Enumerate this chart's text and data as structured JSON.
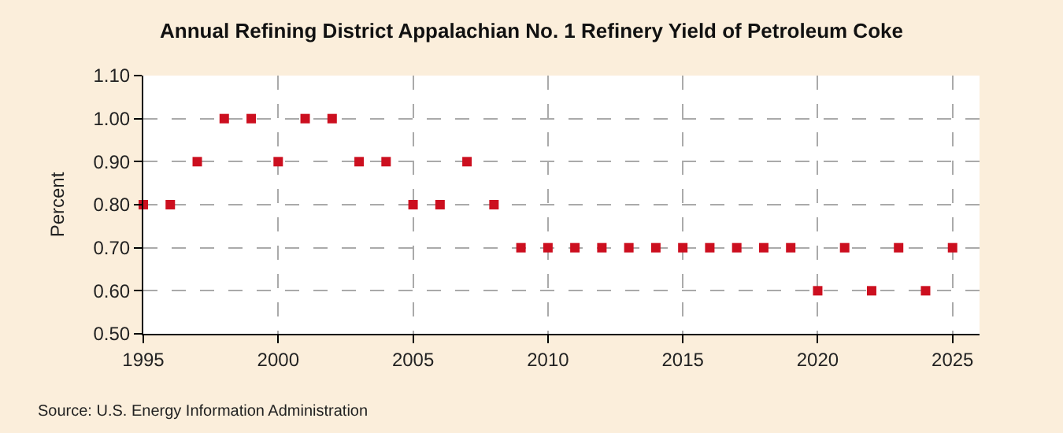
{
  "chart_data": {
    "type": "scatter",
    "title": "Annual Refining District Appalachian No. 1 Refinery Yield of Petroleum Coke",
    "ylabel": "Percent",
    "x": [
      1995,
      1996,
      1997,
      1998,
      1999,
      2000,
      2001,
      2002,
      2003,
      2004,
      2005,
      2006,
      2007,
      2008,
      2009,
      2010,
      2011,
      2012,
      2013,
      2014,
      2015,
      2016,
      2017,
      2018,
      2019,
      2020,
      2021,
      2022,
      2023,
      2024,
      2025
    ],
    "series": [
      {
        "color": "#cc0f1f",
        "values": [
          0.8,
          0.8,
          0.9,
          1.0,
          1.0,
          0.9,
          1.0,
          1.0,
          0.9,
          0.9,
          0.8,
          0.8,
          0.9,
          0.8,
          0.7,
          0.7,
          0.7,
          0.7,
          0.7,
          0.7,
          0.7,
          0.7,
          0.7,
          0.7,
          0.7,
          0.6,
          0.7,
          0.6,
          0.7,
          0.6,
          0.7
        ]
      }
    ],
    "xlim": [
      1995,
      2026
    ],
    "xticks": [
      1995,
      2000,
      2005,
      2010,
      2015,
      2020,
      2025
    ],
    "ylim": [
      0.5,
      1.1
    ],
    "yticks": [
      {
        "value": 0.5,
        "label": "0.50"
      },
      {
        "value": 0.6,
        "label": "0.60"
      },
      {
        "value": 0.7,
        "label": "0.70"
      },
      {
        "value": 0.8,
        "label": "0.80"
      },
      {
        "value": 0.9,
        "label": "0.90"
      },
      {
        "value": 1.0,
        "label": "1.00"
      },
      {
        "value": 1.1,
        "label": "1.10"
      }
    ],
    "grid": true,
    "marker": "square",
    "legend": false,
    "annotations": [
      "Source: U.S. Energy Information Administration"
    ]
  }
}
